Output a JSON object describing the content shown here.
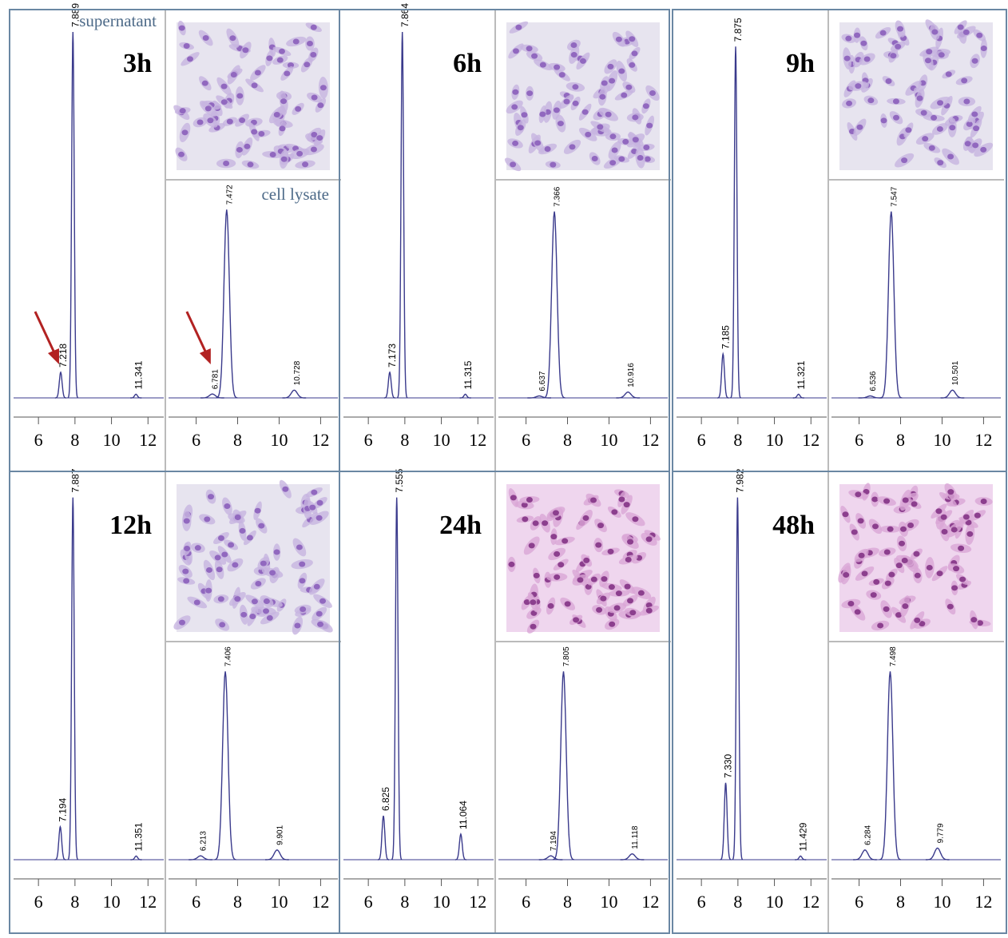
{
  "chart_data": [
    {
      "type": "chromatogram",
      "title": "3h",
      "annotation": "supernatant",
      "xlim": [
        4.9,
        12.6
      ],
      "xticks": [
        6,
        8,
        10,
        12
      ],
      "x": [
        7.218,
        7.889,
        11.341
      ],
      "peak_labels": [
        "7.218",
        "7.889",
        "11.341"
      ],
      "values": [
        7,
        100,
        1
      ],
      "color": "#3a3a8c"
    },
    {
      "type": "chromatogram",
      "annotation": "cell lysate",
      "xlim": [
        4.9,
        12.6
      ],
      "xticks": [
        6,
        8,
        10,
        12
      ],
      "x": [
        6.781,
        7.472,
        10.728
      ],
      "peak_labels": [
        "6.781",
        "7.472",
        "10.728"
      ],
      "values": [
        2,
        97,
        4
      ],
      "color": "#3a3a8c"
    },
    {
      "type": "chromatogram",
      "title": "6h",
      "xlim": [
        4.9,
        12.6
      ],
      "xticks": [
        6,
        8,
        10,
        12
      ],
      "x": [
        7.173,
        7.864,
        11.315
      ],
      "peak_labels": [
        "7.173",
        "7.864",
        "11.315"
      ],
      "values": [
        7,
        100,
        1
      ],
      "color": "#3a3a8c"
    },
    {
      "type": "chromatogram",
      "xlim": [
        4.9,
        12.6
      ],
      "xticks": [
        6,
        8,
        10,
        12
      ],
      "x": [
        6.637,
        7.366,
        10.916
      ],
      "peak_labels": [
        "6.637",
        "7.366",
        "10.916"
      ],
      "values": [
        1,
        96,
        3
      ],
      "color": "#3a3a8c"
    },
    {
      "type": "chromatogram",
      "title": "9h",
      "xlim": [
        4.9,
        12.6
      ],
      "xticks": [
        6,
        8,
        10,
        12
      ],
      "x": [
        7.185,
        7.875,
        11.321
      ],
      "peak_labels": [
        "7.185",
        "7.875",
        "11.321"
      ],
      "values": [
        12,
        96,
        1
      ],
      "color": "#3a3a8c"
    },
    {
      "type": "chromatogram",
      "xlim": [
        4.9,
        12.6
      ],
      "xticks": [
        6,
        8,
        10,
        12
      ],
      "x": [
        6.536,
        7.547,
        10.501
      ],
      "peak_labels": [
        "6.536",
        "7.547",
        "10.501"
      ],
      "values": [
        1,
        96,
        4
      ],
      "color": "#3a3a8c"
    },
    {
      "type": "chromatogram",
      "title": "12h",
      "xlim": [
        4.9,
        12.6
      ],
      "xticks": [
        6,
        8,
        10,
        12
      ],
      "x": [
        7.194,
        7.887,
        11.351
      ],
      "peak_labels": [
        "7.194",
        "7.887",
        "11.351"
      ],
      "values": [
        9,
        99,
        1
      ],
      "color": "#3a3a8c"
    },
    {
      "type": "chromatogram",
      "xlim": [
        4.9,
        12.6
      ],
      "xticks": [
        6,
        8,
        10,
        12
      ],
      "x": [
        6.213,
        7.406,
        9.901
      ],
      "peak_labels": [
        "6.213",
        "7.406",
        "9.901"
      ],
      "values": [
        2,
        97,
        5
      ],
      "color": "#3a3a8c"
    },
    {
      "type": "chromatogram",
      "title": "24h",
      "xlim": [
        4.9,
        12.6
      ],
      "xticks": [
        6,
        8,
        10,
        12
      ],
      "x": [
        6.825,
        7.555,
        11.064
      ],
      "peak_labels": [
        "6.825",
        "7.555",
        "11.064"
      ],
      "values": [
        12,
        99,
        7
      ],
      "color": "#3a3a8c"
    },
    {
      "type": "chromatogram",
      "xlim": [
        4.9,
        12.6
      ],
      "xticks": [
        6,
        8,
        10,
        12
      ],
      "x": [
        7.194,
        7.805,
        11.118
      ],
      "peak_labels": [
        "7.194",
        "7.805",
        "11.118"
      ],
      "values": [
        2,
        97,
        3
      ],
      "color": "#3a3a8c"
    },
    {
      "type": "chromatogram",
      "title": "48h",
      "xlim": [
        4.9,
        12.6
      ],
      "xticks": [
        6,
        8,
        10,
        12
      ],
      "x": [
        7.33,
        7.982,
        11.429
      ],
      "peak_labels": [
        "7.330",
        "7.982",
        "11.429"
      ],
      "values": [
        21,
        99,
        1
      ],
      "color": "#3a3a8c"
    },
    {
      "type": "chromatogram",
      "xlim": [
        4.9,
        12.6
      ],
      "xticks": [
        6,
        8,
        10,
        12
      ],
      "x": [
        6.284,
        7.498,
        9.779
      ],
      "peak_labels": [
        "6.284",
        "7.498",
        "9.779"
      ],
      "values": [
        5,
        97,
        6
      ],
      "color": "#3a3a8c"
    }
  ]
}
